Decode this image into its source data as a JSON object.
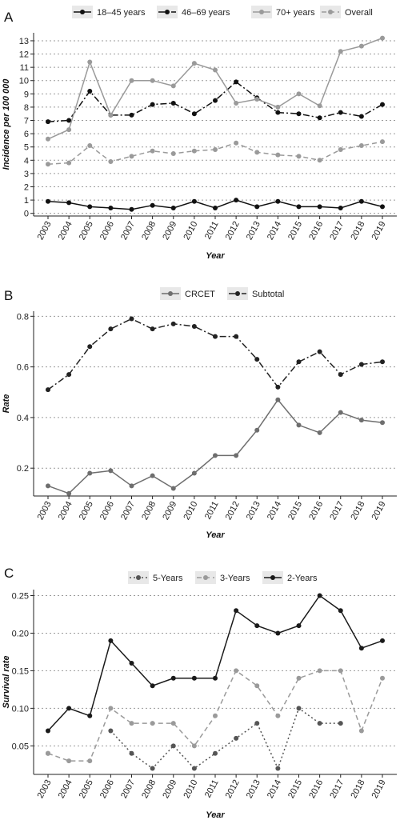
{
  "chart_data": [
    {
      "panel": "A",
      "type": "line",
      "xlabel": "Year",
      "ylabel": "Incidence per 100 000",
      "ylim": [
        -0.2,
        13.6
      ],
      "yticks": [
        0,
        1,
        2,
        3,
        4,
        5,
        6,
        7,
        8,
        9,
        10,
        11,
        12,
        13
      ],
      "grid": "horizontal dotted",
      "legend_position": "top",
      "x": [
        "2003",
        "2004",
        "2005",
        "2006",
        "2007",
        "2008",
        "2009",
        "2010",
        "2011",
        "2012",
        "2013",
        "2014",
        "2015",
        "2016",
        "2017",
        "2018",
        "2019"
      ],
      "series": [
        {
          "name": "18–45 years",
          "color": "#111111",
          "dash": "solid",
          "values": [
            0.9,
            0.8,
            0.5,
            0.4,
            0.3,
            0.6,
            0.4,
            0.9,
            0.4,
            1.0,
            0.5,
            0.9,
            0.5,
            0.5,
            0.4,
            0.9,
            0.5
          ]
        },
        {
          "name": "46–69 years",
          "color": "#111111",
          "dash": "dashdot",
          "values": [
            6.9,
            7.0,
            9.2,
            7.4,
            7.4,
            8.2,
            8.3,
            7.5,
            8.5,
            9.9,
            8.7,
            7.6,
            7.5,
            7.2,
            7.6,
            7.3,
            8.2
          ]
        },
        {
          "name": "70+ years",
          "color": "#9a9a9a",
          "dash": "solid",
          "values": [
            5.6,
            6.3,
            11.4,
            7.4,
            10.0,
            10.0,
            9.6,
            11.3,
            10.8,
            8.3,
            8.6,
            8.0,
            9.0,
            8.1,
            12.2,
            12.6,
            13.2
          ]
        },
        {
          "name": "Overall",
          "color": "#9a9a9a",
          "dash": "dashed",
          "values": [
            3.7,
            3.8,
            5.1,
            3.9,
            4.3,
            4.7,
            4.5,
            4.7,
            4.8,
            5.3,
            4.6,
            4.4,
            4.3,
            4.0,
            4.8,
            5.1,
            5.4
          ]
        }
      ]
    },
    {
      "panel": "B",
      "type": "line",
      "xlabel": "Year",
      "ylabel": "Rate",
      "ylim": [
        0.09,
        0.82
      ],
      "yticks": [
        0.2,
        0.4,
        0.6,
        0.8
      ],
      "ytick_labels": [
        "0.2",
        "0.4",
        "0.6",
        "0.8"
      ],
      "grid": "horizontal dotted",
      "legend_position": "top",
      "x": [
        "2003",
        "2004",
        "2005",
        "2006",
        "2007",
        "2008",
        "2009",
        "2010",
        "2011",
        "2012",
        "2013",
        "2014",
        "2015",
        "2016",
        "2017",
        "2018",
        "2019"
      ],
      "series": [
        {
          "name": "CRCET",
          "color": "#6e6e6e",
          "dash": "solid",
          "values": [
            0.13,
            0.1,
            0.18,
            0.19,
            0.13,
            0.17,
            0.12,
            0.18,
            0.25,
            0.25,
            0.35,
            0.47,
            0.37,
            0.34,
            0.42,
            0.39,
            0.38
          ]
        },
        {
          "name": "Subtotal",
          "color": "#222222",
          "dash": "dashdot",
          "values": [
            0.51,
            0.57,
            0.68,
            0.75,
            0.79,
            0.75,
            0.77,
            0.76,
            0.72,
            0.72,
            0.63,
            0.52,
            0.62,
            0.66,
            0.57,
            0.61,
            0.62
          ]
        }
      ]
    },
    {
      "panel": "C",
      "type": "line",
      "xlabel": "Year",
      "ylabel": "Survival rate",
      "ylim": [
        0.012,
        0.258
      ],
      "yticks": [
        0.05,
        0.1,
        0.15,
        0.2,
        0.25
      ],
      "ytick_labels": [
        "0.05",
        "0.10",
        "0.15",
        "0.20",
        "0.25"
      ],
      "grid": "horizontal dotted",
      "legend_position": "top",
      "x": [
        "2003",
        "2004",
        "2005",
        "2006",
        "2007",
        "2008",
        "2009",
        "2010",
        "2011",
        "2012",
        "2013",
        "2014",
        "2015",
        "2016",
        "2017",
        "2018",
        "2019"
      ],
      "series": [
        {
          "name": "5-Years",
          "color": "#555555",
          "dash": "dotted",
          "values": [
            0.04,
            null,
            null,
            0.07,
            0.04,
            0.02,
            0.05,
            0.02,
            0.04,
            0.06,
            0.08,
            0.02,
            0.1,
            0.08,
            0.08,
            null,
            null
          ]
        },
        {
          "name": "3-Years",
          "color": "#9a9a9a",
          "dash": "dashed",
          "values": [
            0.04,
            0.03,
            0.03,
            0.1,
            0.08,
            0.08,
            0.08,
            0.05,
            0.09,
            0.15,
            0.13,
            0.09,
            0.14,
            0.15,
            0.15,
            0.07,
            0.14
          ]
        },
        {
          "name": "2-Years",
          "color": "#1a1a1a",
          "dash": "solid",
          "values": [
            0.07,
            0.1,
            0.09,
            0.19,
            0.16,
            0.13,
            0.14,
            0.14,
            0.14,
            0.23,
            0.21,
            0.2,
            0.21,
            0.25,
            0.23,
            0.18,
            0.19
          ]
        }
      ]
    }
  ],
  "dash_patterns": {
    "solid": "",
    "dashed": "6,4",
    "dotted": "2,3",
    "dashdot": "8,3,2,3"
  }
}
